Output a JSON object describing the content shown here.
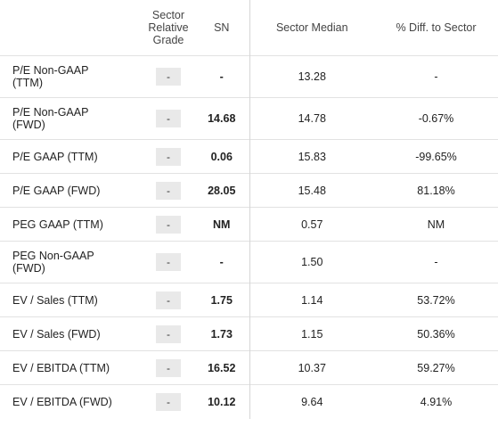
{
  "table": {
    "headers": [
      "",
      "Sector\nRelative\nGrade",
      "SN",
      "Sector Median",
      "% Diff. to Sector"
    ],
    "rows": [
      [
        "P/E Non-GAAP\n(TTM)",
        "-",
        "-",
        "13.28",
        "-"
      ],
      [
        "P/E Non-GAAP\n(FWD)",
        "-",
        "14.68",
        "14.78",
        "-0.67%"
      ],
      [
        "P/E GAAP (TTM)",
        "-",
        "0.06",
        "15.83",
        "-99.65%"
      ],
      [
        "P/E GAAP (FWD)",
        "-",
        "28.05",
        "15.48",
        "81.18%"
      ],
      [
        "PEG GAAP (TTM)",
        "-",
        "NM",
        "0.57",
        "NM"
      ],
      [
        "PEG Non-GAAP\n(FWD)",
        "-",
        "-",
        "1.50",
        "-"
      ],
      [
        "EV / Sales (TTM)",
        "-",
        "1.75",
        "1.14",
        "53.72%"
      ],
      [
        "EV / Sales (FWD)",
        "-",
        "1.73",
        "1.15",
        "50.36%"
      ],
      [
        "EV / EBITDA (TTM)",
        "-",
        "16.52",
        "10.37",
        "59.27%"
      ],
      [
        "EV / EBITDA (FWD)",
        "-",
        "10.12",
        "9.64",
        "4.91%"
      ]
    ]
  }
}
